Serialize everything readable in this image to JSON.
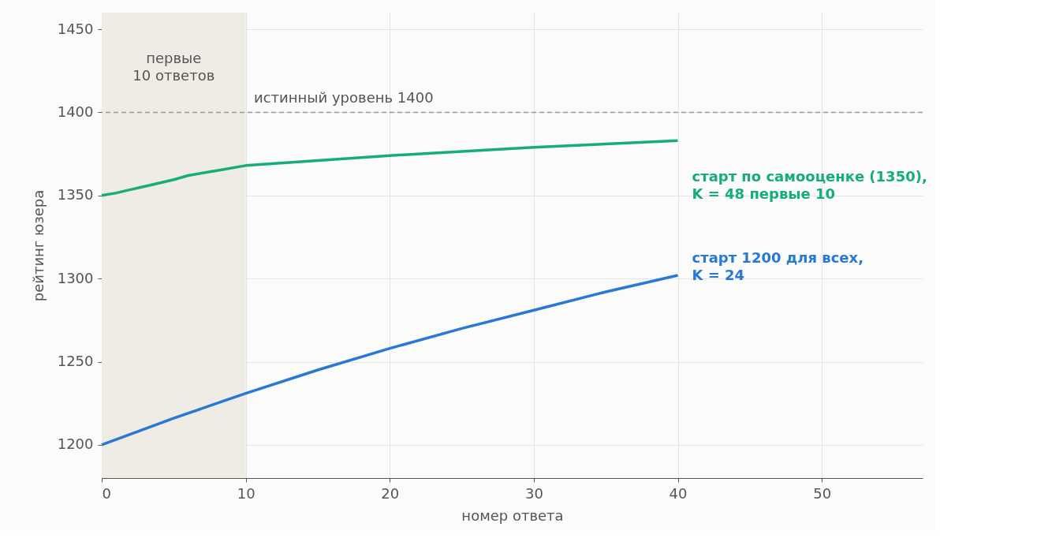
{
  "chart_data": {
    "type": "line",
    "xlabel": "номер ответа",
    "ylabel": "рейтинг юзера",
    "xlim": [
      0,
      57
    ],
    "ylim": [
      1180,
      1460
    ],
    "xticks": [
      0,
      10,
      20,
      30,
      40,
      50
    ],
    "yticks": [
      1200,
      1250,
      1300,
      1350,
      1400,
      1450
    ],
    "grid": true,
    "marker": "none",
    "line_style": "solid",
    "series": [
      {
        "name": "старт по самооценке (1350),\nK = 48 первые 10",
        "color": "#17ad78",
        "x": [
          0,
          1,
          2,
          3,
          4,
          5,
          6,
          8,
          10,
          15,
          20,
          25,
          30,
          35,
          40
        ],
        "values": [
          1350,
          1351.5,
          1353.5,
          1355.5,
          1357.5,
          1359.5,
          1362,
          1365,
          1368,
          1371,
          1374,
          1376.5,
          1379,
          1381,
          1383
        ]
      },
      {
        "name": "старт 1200 для всех,\nK = 24",
        "color": "#2878d6",
        "x": [
          0,
          5,
          10,
          15,
          20,
          25,
          30,
          35,
          40
        ],
        "values": [
          1200,
          1216,
          1231,
          1245,
          1258,
          1270,
          1281,
          1292,
          1302
        ]
      }
    ],
    "ref_lines": [
      {
        "axis": "y",
        "value": 1400,
        "label": "истинный уровень 1400",
        "color": "#999999",
        "line_style": "dashed"
      }
    ],
    "bands": [
      {
        "axis": "x",
        "from": 0,
        "to": 10,
        "label": "первые\n10 ответов",
        "color": "#efebe5"
      }
    ]
  }
}
